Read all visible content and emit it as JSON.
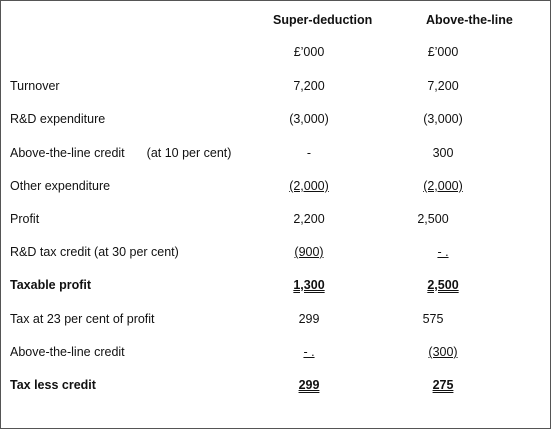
{
  "columns": {
    "col1": {
      "header": "Super-deduction",
      "unit": "£’000"
    },
    "col2": {
      "header": "Above-the-line",
      "unit": "£’000"
    }
  },
  "rows": [
    {
      "label": "Turnover",
      "v1": "7,200",
      "v2": "7,200"
    },
    {
      "label": "R&D expenditure",
      "v1": "(3,000)",
      "v2": "(3,000)"
    },
    {
      "label": "Above-the-line credit",
      "label_note": "(at 10 per cent)",
      "v1": "-",
      "v2": "300"
    },
    {
      "label": "Other expenditure",
      "v1": "(2,000)",
      "v2": "(2,000)"
    },
    {
      "label": "Profit",
      "v1": "2,200",
      "v2": "2,500"
    },
    {
      "label": "R&D tax credit (at 30 per cent)",
      "v1": "(900)",
      "v2": "- ."
    },
    {
      "label": "Taxable profit",
      "v1": "1,300",
      "v2": "2,500"
    },
    {
      "label": "Tax at 23 per cent of profit",
      "v1": "299",
      "v2": "575"
    },
    {
      "label": "Above-the-line credit",
      "v1": "- .",
      "v2": "(300)"
    },
    {
      "label": "Tax less credit",
      "v1": "299",
      "v2": "275"
    }
  ]
}
